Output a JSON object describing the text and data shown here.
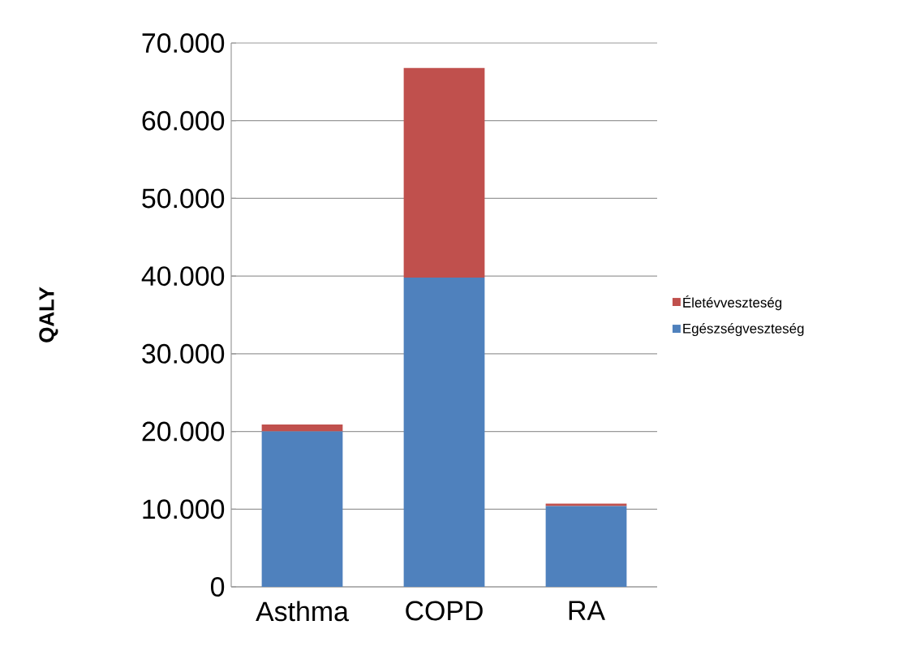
{
  "chart_data": {
    "type": "bar",
    "stacked": true,
    "ylabel": "QALY",
    "categories": [
      "Asthma",
      "COPD",
      "RA"
    ],
    "series": [
      {
        "name": "Egészségveszteség",
        "color": "#4f81bd",
        "values": [
          20000,
          39800,
          10400
        ]
      },
      {
        "name": "Életévveszteség",
        "color": "#c0504d",
        "values": [
          900,
          27000,
          300
        ]
      }
    ],
    "ylim": [
      0,
      70000
    ],
    "yticks": [
      0,
      {
        "value": 10000,
        "label": "10.000"
      },
      {
        "value": 20000,
        "label": "20.000"
      },
      {
        "value": 30000,
        "label": "30.000"
      },
      {
        "value": 40000,
        "label": "40.000"
      },
      {
        "value": 50000,
        "label": "50.000"
      },
      {
        "value": 60000,
        "label": "60.000"
      },
      {
        "value": 70000,
        "label": "70.000"
      }
    ],
    "grid": "y",
    "legend": "right"
  }
}
